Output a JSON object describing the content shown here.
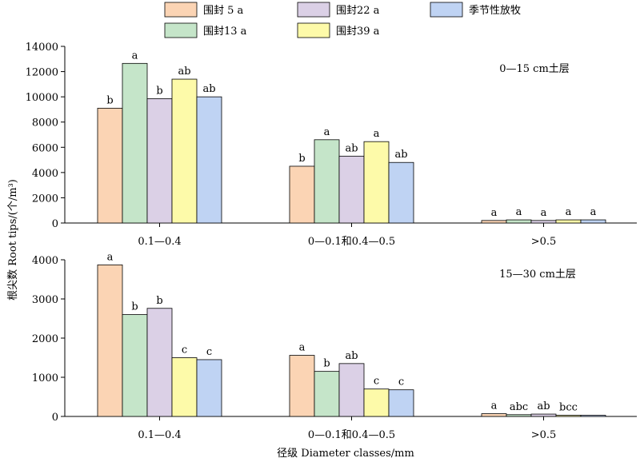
{
  "ylabel": "根尖数 Root tips/(个/m³)",
  "xlabel": "径级 Diameter classes/mm",
  "legend": [
    {
      "name": "围封 5 a",
      "color": "#fbd4b4"
    },
    {
      "name": "围封13 a",
      "color": "#c5e5c9"
    },
    {
      "name": "围封22 a",
      "color": "#dbd0e6"
    },
    {
      "name": "围封39 a",
      "color": "#fdfaa9"
    },
    {
      "name": "季节性放牧",
      "color": "#bfd3f3"
    }
  ],
  "chart_data": [
    {
      "type": "bar",
      "title": "0—15 cm土层",
      "categories": [
        "0.1—0.4",
        "0—0.1和0.4—0.5",
        ">0.5"
      ],
      "ylim": [
        0,
        14000
      ],
      "yticks": [
        0,
        2000,
        4000,
        6000,
        8000,
        10000,
        12000,
        14000
      ],
      "series": [
        {
          "name": "围封 5 a",
          "values": [
            9100,
            4500,
            200
          ],
          "letters": [
            "b",
            "b",
            "a"
          ]
        },
        {
          "name": "围封13 a",
          "values": [
            12650,
            6600,
            250
          ],
          "letters": [
            "a",
            "a",
            "a"
          ]
        },
        {
          "name": "围封22 a",
          "values": [
            9850,
            5300,
            200
          ],
          "letters": [
            "b",
            "ab",
            "a"
          ]
        },
        {
          "name": "围封39 a",
          "values": [
            11400,
            6450,
            250
          ],
          "letters": [
            "ab",
            "a",
            "a"
          ]
        },
        {
          "name": "季节性放牧",
          "values": [
            10000,
            4800,
            250
          ],
          "letters": [
            "ab",
            "ab",
            "a"
          ]
        }
      ]
    },
    {
      "type": "bar",
      "title": "15—30 cm土层",
      "categories": [
        "0.1—0.4",
        "0—0.1和0.4—0.5",
        ">0.5"
      ],
      "ylim": [
        0,
        4000
      ],
      "yticks": [
        0,
        1000,
        2000,
        3000,
        4000
      ],
      "series": [
        {
          "name": "围封 5 a",
          "values": [
            3870,
            1560,
            70
          ],
          "letters": [
            "a",
            "a",
            "a"
          ]
        },
        {
          "name": "围封13 a",
          "values": [
            2600,
            1150,
            45
          ],
          "letters": [
            "b",
            "b",
            "abc"
          ]
        },
        {
          "name": "围封22 a",
          "values": [
            2760,
            1350,
            60
          ],
          "letters": [
            "b",
            "ab",
            "ab"
          ]
        },
        {
          "name": "围封39 a",
          "values": [
            1500,
            700,
            30
          ],
          "letters": [
            "c",
            "c",
            "bcc"
          ]
        },
        {
          "name": "季节性放牧",
          "values": [
            1450,
            680,
            30
          ],
          "letters": [
            "c",
            "c",
            ""
          ]
        }
      ]
    }
  ]
}
